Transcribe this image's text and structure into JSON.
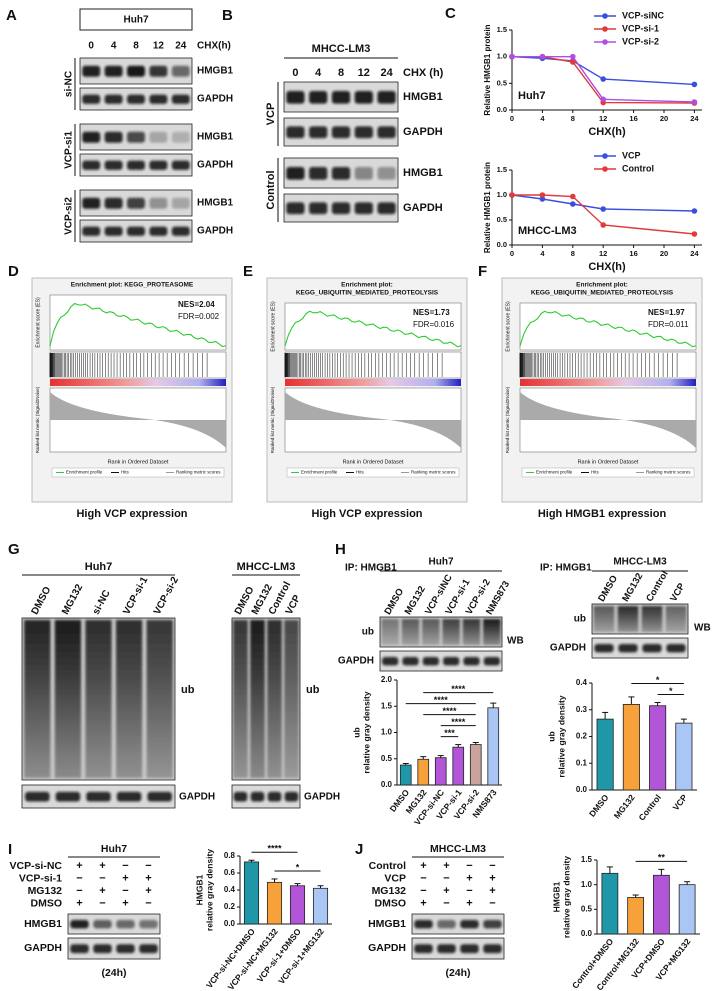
{
  "panels": {
    "A": {
      "label": "A",
      "cell_line": "Huh7",
      "time_label": "CHX(h)",
      "lanes": [
        "0",
        "4",
        "8",
        "12",
        "24"
      ],
      "groups": [
        {
          "name": "si-NC",
          "rows": [
            "HMGB1",
            "GAPDH"
          ]
        },
        {
          "name": "VCP-si1",
          "rows": [
            "HMGB1",
            "GAPDH"
          ]
        },
        {
          "name": "VCP-si2",
          "rows": [
            "HMGB1",
            "GAPDH"
          ]
        }
      ]
    },
    "B": {
      "label": "B",
      "cell_line": "MHCC-LM3",
      "time_label": "CHX (h)",
      "lanes": [
        "0",
        "4",
        "8",
        "12",
        "24"
      ],
      "groups": [
        {
          "name": "VCP",
          "rows": [
            "HMGB1",
            "GAPDH"
          ]
        },
        {
          "name": "Control",
          "rows": [
            "HMGB1",
            "GAPDH"
          ]
        }
      ]
    },
    "C": {
      "label": "C"
    },
    "D": {
      "label": "D",
      "title": [
        "Enrichment plot: KEGG_PROTEASOME"
      ],
      "nes": "NES=2.04",
      "fdr": "FDR=0.002",
      "es_label": "Enrichment score (ES)",
      "metric_label": "Ranked list metric (Signal2Noise)",
      "x_label": "Rank in Ordered Dataset",
      "legend": [
        "Enrichment profile",
        "Hits",
        "Ranking metric scores"
      ],
      "caption": "High VCP expression"
    },
    "E": {
      "label": "E",
      "title": [
        "Enrichment plot:",
        "KEGG_UBIQUITIN_MEDIATED_PROTEOLYSIS"
      ],
      "nes": "NES=1.73",
      "fdr": "FDR=0.016",
      "es_label": "Enrichment score (ES)",
      "metric_label": "Ranked list metric (Signal2Noise)",
      "x_label": "Rank in Ordered Dataset",
      "legend": [
        "Enrichment profile",
        "Hits",
        "Ranking metric scores"
      ],
      "caption": "High VCP expression"
    },
    "F": {
      "label": "F",
      "title": [
        "Enrichment plot:",
        "KEGG_UBIQUITIN_MEDIATED_PROTEOLYSIS"
      ],
      "nes": "NES=1.97",
      "fdr": "FDR=0.011",
      "es_label": "Enrichment score (ES)",
      "metric_label": "Ranked list metric (Signal2Noise)",
      "x_label": "Rank in Ordered Dataset",
      "legend": [
        "Enrichment profile",
        "Hits",
        "Ranking metric scores"
      ],
      "caption": "High HMGB1 expression"
    },
    "G": {
      "label": "G",
      "blots": [
        {
          "cell_line": "Huh7",
          "lanes": [
            "DMSO",
            "MG132",
            "si-NC",
            "VCP-si-1",
            "VCP-si-2"
          ],
          "rows": [
            "ub",
            "GAPDH"
          ]
        },
        {
          "cell_line": "MHCC-LM3",
          "lanes": [
            "DMSO",
            "MG132",
            "Control",
            "VCP"
          ],
          "rows": [
            "ub",
            "GAPDH"
          ]
        }
      ]
    },
    "H": {
      "label": "H",
      "blots": [
        {
          "ip": "IP: HMGB1",
          "cell_line": "Huh7",
          "lanes": [
            "DMSO",
            "MG132",
            "VCP-siNC",
            "VCP-si-1",
            "VCP-si-2",
            "NMS873"
          ],
          "rows": [
            "ub",
            "GAPDH"
          ],
          "wb": "WB"
        },
        {
          "ip": "IP: HMGB1",
          "cell_line": "MHCC-LM3",
          "lanes": [
            "DMSO",
            "MG132",
            "Control",
            "VCP"
          ],
          "rows": [
            "ub",
            "GAPDH"
          ],
          "wb": "WB"
        }
      ]
    },
    "I": {
      "label": "I",
      "cell_line": "Huh7",
      "rows": [
        "HMGB1",
        "GAPDH"
      ],
      "time": "(24h)",
      "treatments": [
        {
          "name": "VCP-si-NC",
          "signs": [
            "+",
            "+",
            "−",
            "−"
          ]
        },
        {
          "name": "VCP-si-1",
          "signs": [
            "−",
            "−",
            "+",
            "+"
          ]
        },
        {
          "name": "MG132",
          "signs": [
            "−",
            "+",
            "−",
            "+"
          ]
        },
        {
          "name": "DMSO",
          "signs": [
            "+",
            "−",
            "+",
            "−"
          ]
        }
      ]
    },
    "J": {
      "label": "J",
      "cell_line": "MHCC-LM3",
      "rows": [
        "HMGB1",
        "GAPDH"
      ],
      "time": "(24h)",
      "treatments": [
        {
          "name": "Control",
          "signs": [
            "+",
            "+",
            "−",
            "−"
          ]
        },
        {
          "name": "VCP",
          "signs": [
            "−",
            "−",
            "+",
            "+"
          ]
        },
        {
          "name": "MG132",
          "signs": [
            "−",
            "+",
            "−",
            "+"
          ]
        },
        {
          "name": "DMSO",
          "signs": [
            "+",
            "−",
            "+",
            "−"
          ]
        }
      ]
    }
  },
  "chart_data": [
    {
      "type": "line",
      "annotation": "Huh7",
      "ylabel": "Relative HMGB1 protein",
      "xlabel": "CHX(h)",
      "x": [
        0,
        4,
        8,
        12,
        24
      ],
      "xlim": [
        0,
        25
      ],
      "xticks": [
        0,
        4,
        8,
        12,
        16,
        20,
        24
      ],
      "ylim": [
        0,
        1.5
      ],
      "yticks": [
        {
          "value": 0,
          "label": "0.0"
        },
        {
          "value": 0.5,
          "label": "0.5"
        },
        {
          "value": 1,
          "label": "1.0"
        },
        {
          "value": 1.5,
          "label": "1.5"
        }
      ],
      "legend": "upper right",
      "series": [
        {
          "name": "VCP-siNC",
          "color": "#3a4fe0",
          "values": [
            1.0,
            0.97,
            0.92,
            0.58,
            0.48
          ]
        },
        {
          "name": "VCP-si-1",
          "color": "#e03a3a",
          "values": [
            1.0,
            1.0,
            0.9,
            0.14,
            0.13
          ]
        },
        {
          "name": "VCP-si-2",
          "color": "#b04ee0",
          "values": [
            1.0,
            1.0,
            1.0,
            0.2,
            0.15
          ]
        }
      ]
    },
    {
      "type": "line",
      "annotation": "MHCC-LM3",
      "ylabel": "Relative HMGB1 protein",
      "xlabel": "CHX(h)",
      "x": [
        0,
        4,
        8,
        12,
        24
      ],
      "xlim": [
        0,
        25
      ],
      "xticks": [
        0,
        4,
        8,
        12,
        16,
        20,
        24
      ],
      "ylim": [
        0,
        1.5
      ],
      "yticks": [
        {
          "value": 0,
          "label": "0.0"
        },
        {
          "value": 0.5,
          "label": "0.5"
        },
        {
          "value": 1,
          "label": "1.0"
        },
        {
          "value": 1.5,
          "label": "1.5"
        }
      ],
      "legend": "upper right",
      "series": [
        {
          "name": "VCP",
          "color": "#3a4fe0",
          "values": [
            1.0,
            0.92,
            0.82,
            0.72,
            0.68
          ]
        },
        {
          "name": "Control",
          "color": "#e03a3a",
          "values": [
            1.0,
            1.0,
            0.97,
            0.4,
            0.22
          ]
        }
      ]
    },
    {
      "type": "bar",
      "ylabel": [
        "ub",
        "relative gray density"
      ],
      "categories": [
        "DMSO",
        "MG132",
        "VCP-si-NC",
        "VCP-si-1",
        "VCP-si-2",
        "NMS873"
      ],
      "values": [
        0.38,
        0.49,
        0.52,
        0.72,
        0.77,
        1.47
      ],
      "errors": [
        0.03,
        0.05,
        0.04,
        0.05,
        0.04,
        0.09
      ],
      "colors": [
        "#1f97a8",
        "#f7a13a",
        "#b255d6",
        "#b255d6",
        "#c9a39c",
        "#a9c6f5"
      ],
      "ylim": [
        0,
        2
      ],
      "yticks": [
        {
          "value": 0,
          "label": "0.0"
        },
        {
          "value": 0.5,
          "label": "0.5"
        },
        {
          "value": 1,
          "label": "1.0"
        },
        {
          "value": 1.5,
          "label": "1.5"
        },
        {
          "value": 2,
          "label": "2.0"
        }
      ],
      "significance": [
        {
          "label": "***",
          "between": [
            2,
            3
          ]
        },
        {
          "label": "****",
          "between": [
            2,
            4
          ]
        },
        {
          "label": "****",
          "between": [
            1,
            4
          ]
        },
        {
          "label": "****",
          "between": [
            0,
            4
          ]
        },
        {
          "label": "****",
          "between": [
            1,
            5
          ]
        }
      ]
    },
    {
      "type": "bar",
      "ylabel": [
        "ub",
        "relative gray density"
      ],
      "categories": [
        "DMSO",
        "MG132",
        "Control",
        "VCP"
      ],
      "values": [
        0.265,
        0.32,
        0.315,
        0.25
      ],
      "errors": [
        0.025,
        0.028,
        0.012,
        0.015
      ],
      "colors": [
        "#1f97a8",
        "#f7a13a",
        "#b255d6",
        "#a9c6f5"
      ],
      "ylim": [
        0,
        0.4
      ],
      "yticks": [
        {
          "value": 0,
          "label": "0.0"
        },
        0.1,
        0.2,
        0.3,
        0.4
      ],
      "significance": [
        {
          "label": "*",
          "between": [
            2,
            3
          ]
        },
        {
          "label": "*",
          "between": [
            1,
            3
          ]
        }
      ]
    },
    {
      "type": "bar",
      "ylabel": [
        "HMGB1",
        "relative gray density"
      ],
      "categories": [
        "VCP-si-NC+DMSO",
        "VCP-si-NC+MG132",
        "VCP-si-1+DMSO",
        "VCP-si-1+MG132"
      ],
      "values": [
        0.73,
        0.49,
        0.45,
        0.42
      ],
      "errors": [
        0.02,
        0.04,
        0.025,
        0.03
      ],
      "colors": [
        "#1f97a8",
        "#f7a13a",
        "#b255d6",
        "#a9c6f5"
      ],
      "ylim": [
        0,
        0.8
      ],
      "yticks": [
        {
          "value": 0,
          "label": "0.0"
        },
        0.2,
        0.4,
        0.6,
        0.8
      ],
      "significance": [
        {
          "label": "*",
          "between": [
            1,
            3
          ]
        },
        {
          "label": "****",
          "between": [
            0,
            2
          ]
        }
      ]
    },
    {
      "type": "bar",
      "ylabel": [
        "HMGB1",
        "relative gray density"
      ],
      "categories": [
        "Control+DMSO",
        "Control+MG132",
        "VCP+DMSO",
        "VCP+MG132"
      ],
      "values": [
        1.23,
        0.74,
        1.19,
        1.0
      ],
      "errors": [
        0.13,
        0.05,
        0.12,
        0.06
      ],
      "colors": [
        "#1f97a8",
        "#f7a13a",
        "#b255d6",
        "#a9c6f5"
      ],
      "ylim": [
        0,
        1.5
      ],
      "yticks": [
        {
          "value": 0,
          "label": "0.0"
        },
        {
          "value": 0.5,
          "label": "0.5"
        },
        {
          "value": 1,
          "label": "1.0"
        },
        {
          "value": 1.5,
          "label": "1.5"
        }
      ],
      "significance": [
        {
          "label": "**",
          "between": [
            1,
            3
          ]
        }
      ]
    }
  ]
}
